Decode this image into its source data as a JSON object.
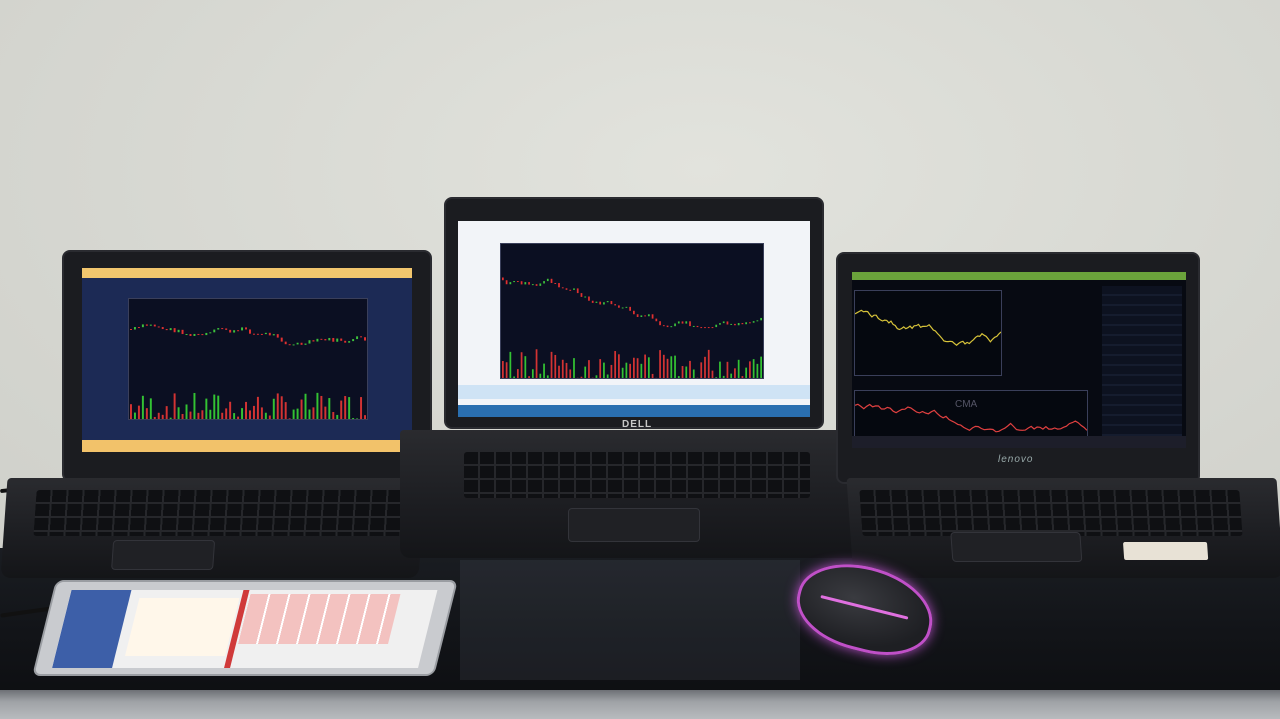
{
  "scene": {
    "description_kind": "photo",
    "brand_center": "DELL",
    "brand_right": "lenovo",
    "right_screen_watermark": "CMA"
  },
  "colors": {
    "up_candle": "#3cc13c",
    "down_candle": "#e03030",
    "volume_green": "#33c233",
    "volume_red": "#d33333",
    "mouse_glow": "#d060d8"
  },
  "icons": {
    "center": "candlestick-chart",
    "left": "candlestick-chart",
    "right": "line-chart"
  }
}
